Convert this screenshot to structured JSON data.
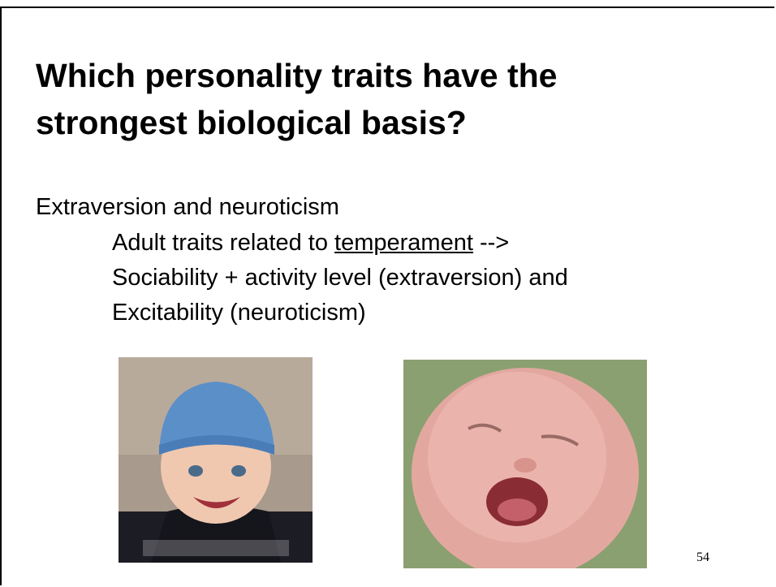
{
  "slide": {
    "title_lines": [
      "Which personality traits have the",
      "strongest biological basis?"
    ],
    "body": {
      "heading": "Extraversion and neuroticism",
      "line_1": {
        "before": "Adult traits related to",
        "underlined": "temperament",
        "after": "-->"
      },
      "line_2": "Sociability + activity level (extraversion) and",
      "line_3": "Excitability (neuroticism)"
    },
    "page_number": "54"
  }
}
